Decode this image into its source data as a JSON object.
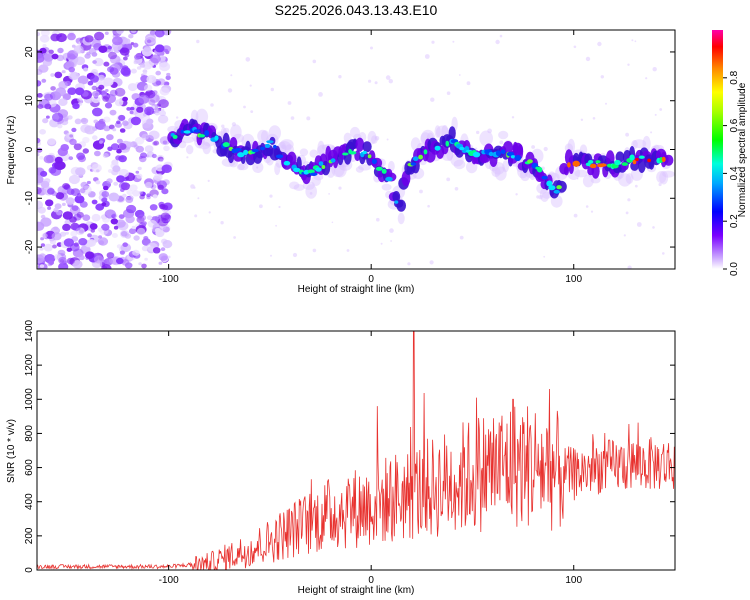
{
  "figure_title": "S225.2026.043.13.43.E10",
  "chart_data": [
    {
      "type": "heatmap",
      "xlabel": "Height of straight line (km)",
      "ylabel": "Frequency (Hz)",
      "xlim": [
        -165,
        150
      ],
      "ylim": [
        -24.5,
        24.5
      ],
      "x_ticks": [
        -100,
        0,
        100
      ],
      "y_ticks": [
        -20,
        -10,
        0,
        10,
        20
      ],
      "colorbar": {
        "label": "Normalized spectral amplitude",
        "range": [
          0,
          1
        ],
        "ticks": [
          "0.0",
          "0.2",
          "0.4",
          "0.6",
          "0.8"
        ]
      },
      "trace_points": [
        {
          "x": -98,
          "y": 3
        },
        {
          "x": -90,
          "y": 4
        },
        {
          "x": -80,
          "y": 3
        },
        {
          "x": -70,
          "y": 0
        },
        {
          "x": -60,
          "y": -1
        },
        {
          "x": -50,
          "y": 1
        },
        {
          "x": -40,
          "y": -3
        },
        {
          "x": -30,
          "y": -5
        },
        {
          "x": -20,
          "y": -2
        },
        {
          "x": -10,
          "y": 0
        },
        {
          "x": 0,
          "y": -1
        },
        {
          "x": 5,
          "y": -4
        },
        {
          "x": 10,
          "y": -7
        },
        {
          "x": 14,
          "y": -13
        },
        {
          "x": 17,
          "y": -6
        },
        {
          "x": 20,
          "y": -3
        },
        {
          "x": 30,
          "y": 0
        },
        {
          "x": 40,
          "y": 2
        },
        {
          "x": 50,
          "y": -1
        },
        {
          "x": 60,
          "y": -1
        },
        {
          "x": 70,
          "y": -1
        },
        {
          "x": 80,
          "y": -3
        },
        {
          "x": 88,
          "y": -7
        },
        {
          "x": 92,
          "y": -9
        },
        {
          "x": 97,
          "y": -3
        },
        {
          "x": 110,
          "y": -3
        },
        {
          "x": 120,
          "y": -3
        },
        {
          "x": 130,
          "y": -2
        },
        {
          "x": 140,
          "y": -2
        },
        {
          "x": 148,
          "y": -3
        }
      ]
    },
    {
      "type": "line",
      "xlabel": "Height of straight line (km)",
      "ylabel": "SNR (10 * v/v)",
      "xlim": [
        -165,
        150
      ],
      "ylim": [
        0,
        1400
      ],
      "x_ticks": [
        -100,
        0,
        100
      ],
      "y_ticks": [
        0,
        200,
        400,
        600,
        800,
        1000,
        1200,
        1400
      ],
      "color": "#e8322f",
      "envelope": [
        {
          "x": -165,
          "y": 20
        },
        {
          "x": -100,
          "y": 20
        },
        {
          "x": -80,
          "y": 40
        },
        {
          "x": -70,
          "y": 80
        },
        {
          "x": -60,
          "y": 120
        },
        {
          "x": -50,
          "y": 170
        },
        {
          "x": -40,
          "y": 230
        },
        {
          "x": -30,
          "y": 280
        },
        {
          "x": -20,
          "y": 330
        },
        {
          "x": -10,
          "y": 360
        },
        {
          "x": 0,
          "y": 380
        },
        {
          "x": 10,
          "y": 420
        },
        {
          "x": 20,
          "y": 450
        },
        {
          "x": 30,
          "y": 480
        },
        {
          "x": 40,
          "y": 520
        },
        {
          "x": 50,
          "y": 560
        },
        {
          "x": 60,
          "y": 600
        },
        {
          "x": 70,
          "y": 620
        },
        {
          "x": 80,
          "y": 620
        },
        {
          "x": 90,
          "y": 580
        },
        {
          "x": 100,
          "y": 560
        },
        {
          "x": 110,
          "y": 600
        },
        {
          "x": 120,
          "y": 610
        },
        {
          "x": 130,
          "y": 620
        },
        {
          "x": 140,
          "y": 620
        },
        {
          "x": 150,
          "y": 620
        }
      ],
      "peaks": [
        {
          "x": 21,
          "y": 1400
        },
        {
          "x": 3,
          "y": 960
        },
        {
          "x": 52,
          "y": 1010
        },
        {
          "x": 88,
          "y": 1060
        },
        {
          "x": 70,
          "y": 1000
        }
      ]
    }
  ]
}
